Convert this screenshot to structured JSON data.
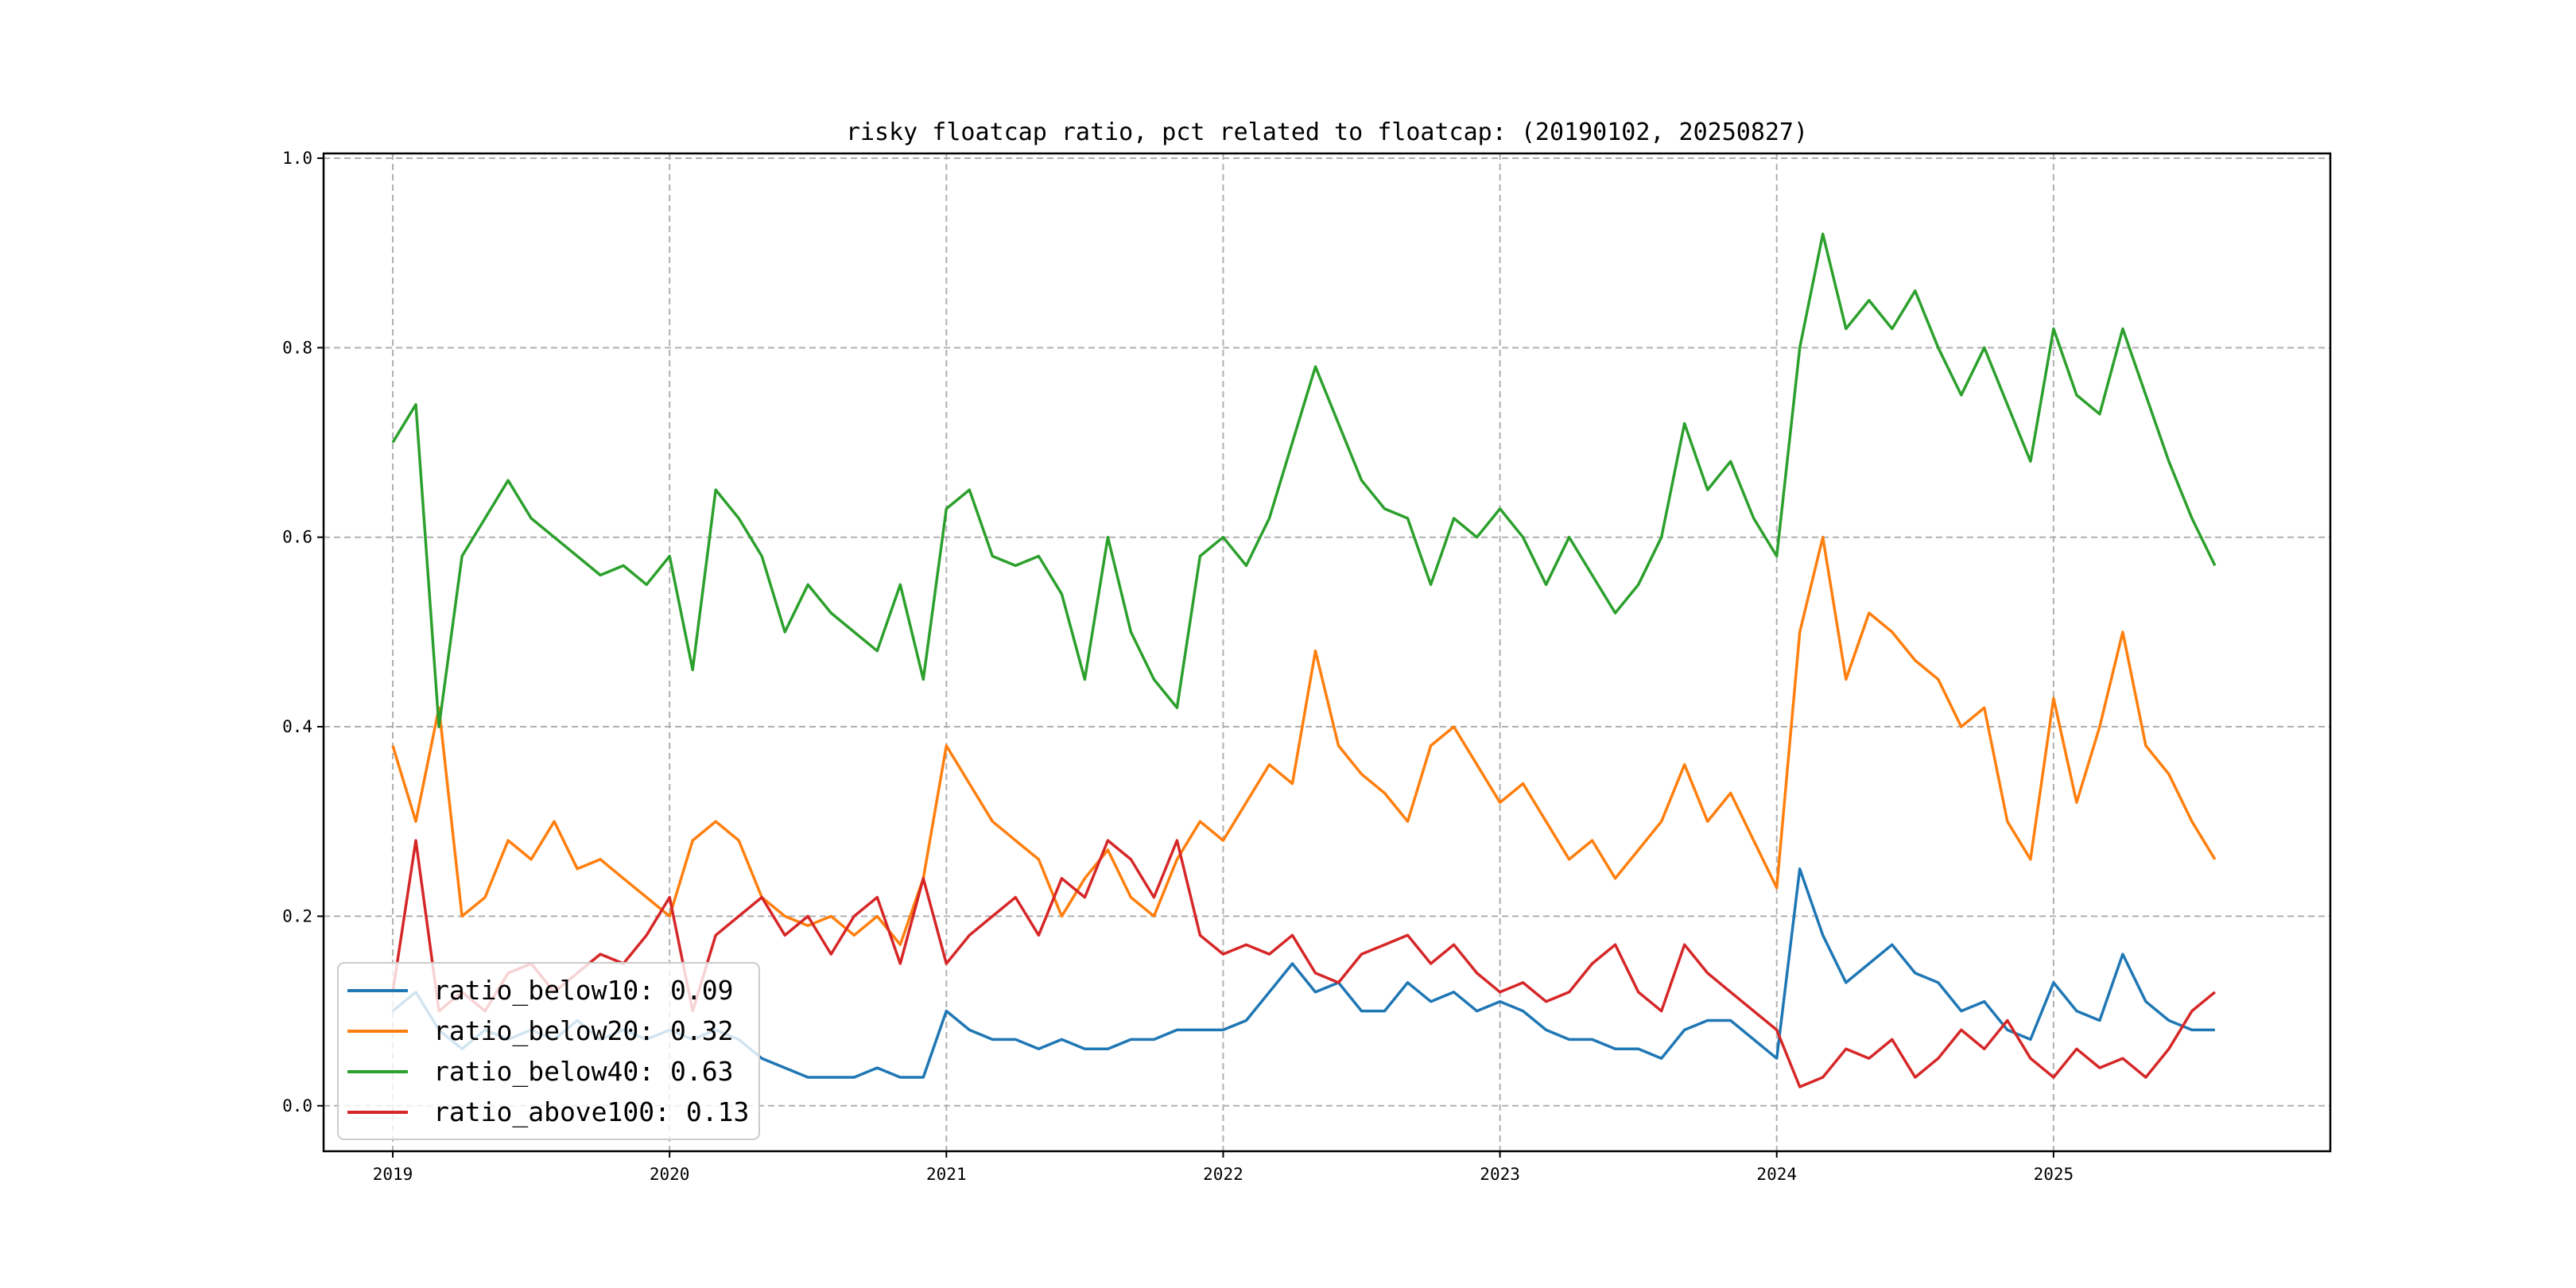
{
  "chart_data": {
    "type": "line",
    "title": "risky floatcap ratio, pct related to floatcap: (20190102, 20250827)",
    "xlabel": "",
    "ylabel": "",
    "x_start_year": 2019,
    "x_step": "monthly",
    "xlim": [
      2018.75,
      2026.0
    ],
    "ylim": [
      -0.048,
      1.005
    ],
    "x_ticks": [
      "2019",
      "2020",
      "2021",
      "2022",
      "2023",
      "2024",
      "2025"
    ],
    "y_ticks": [
      "0.0",
      "0.2",
      "0.4",
      "0.6",
      "0.8",
      "1.0"
    ],
    "grid": true,
    "legend_position": "lower-left",
    "series": [
      {
        "name": "ratio_below10",
        "legend": "ratio_below10: 0.09",
        "color": "#1f77b4",
        "values": [
          0.1,
          0.12,
          0.08,
          0.06,
          0.08,
          0.07,
          0.08,
          0.07,
          0.09,
          0.07,
          0.08,
          0.07,
          0.08,
          0.07,
          0.08,
          0.07,
          0.05,
          0.04,
          0.03,
          0.03,
          0.03,
          0.04,
          0.03,
          0.03,
          0.1,
          0.08,
          0.07,
          0.07,
          0.06,
          0.07,
          0.06,
          0.06,
          0.07,
          0.07,
          0.08,
          0.08,
          0.08,
          0.09,
          0.12,
          0.15,
          0.12,
          0.13,
          0.1,
          0.1,
          0.13,
          0.11,
          0.12,
          0.1,
          0.11,
          0.1,
          0.08,
          0.07,
          0.07,
          0.06,
          0.06,
          0.05,
          0.08,
          0.09,
          0.09,
          0.07,
          0.05,
          0.25,
          0.18,
          0.13,
          0.15,
          0.17,
          0.14,
          0.13,
          0.1,
          0.11,
          0.08,
          0.07,
          0.13,
          0.1,
          0.09,
          0.16,
          0.11,
          0.09,
          0.08,
          0.08
        ]
      },
      {
        "name": "ratio_below20",
        "legend": "ratio_below20: 0.32",
        "color": "#ff7f0e",
        "values": [
          0.38,
          0.3,
          0.42,
          0.2,
          0.22,
          0.28,
          0.26,
          0.3,
          0.25,
          0.26,
          0.24,
          0.22,
          0.2,
          0.28,
          0.3,
          0.28,
          0.22,
          0.2,
          0.19,
          0.2,
          0.18,
          0.2,
          0.17,
          0.24,
          0.38,
          0.34,
          0.3,
          0.28,
          0.26,
          0.2,
          0.24,
          0.27,
          0.22,
          0.2,
          0.26,
          0.3,
          0.28,
          0.32,
          0.36,
          0.34,
          0.48,
          0.38,
          0.35,
          0.33,
          0.3,
          0.38,
          0.4,
          0.36,
          0.32,
          0.34,
          0.3,
          0.26,
          0.28,
          0.24,
          0.27,
          0.3,
          0.36,
          0.3,
          0.33,
          0.28,
          0.23,
          0.5,
          0.6,
          0.45,
          0.52,
          0.5,
          0.47,
          0.45,
          0.4,
          0.42,
          0.3,
          0.26,
          0.43,
          0.32,
          0.4,
          0.5,
          0.38,
          0.35,
          0.3,
          0.26
        ]
      },
      {
        "name": "ratio_below40",
        "legend": "ratio_below40: 0.63",
        "color": "#2ca02c",
        "values": [
          0.7,
          0.74,
          0.4,
          0.58,
          0.62,
          0.66,
          0.62,
          0.6,
          0.58,
          0.56,
          0.57,
          0.55,
          0.58,
          0.46,
          0.65,
          0.62,
          0.58,
          0.5,
          0.55,
          0.52,
          0.5,
          0.48,
          0.55,
          0.45,
          0.63,
          0.65,
          0.58,
          0.57,
          0.58,
          0.54,
          0.45,
          0.6,
          0.5,
          0.45,
          0.42,
          0.58,
          0.6,
          0.57,
          0.62,
          0.7,
          0.78,
          0.72,
          0.66,
          0.63,
          0.62,
          0.55,
          0.62,
          0.6,
          0.63,
          0.6,
          0.55,
          0.6,
          0.56,
          0.52,
          0.55,
          0.6,
          0.72,
          0.65,
          0.68,
          0.62,
          0.58,
          0.8,
          0.92,
          0.82,
          0.85,
          0.82,
          0.86,
          0.8,
          0.75,
          0.8,
          0.74,
          0.68,
          0.82,
          0.75,
          0.73,
          0.82,
          0.75,
          0.68,
          0.62,
          0.57
        ]
      },
      {
        "name": "ratio_above100",
        "legend": "ratio_above100: 0.13",
        "color": "#d62728",
        "values": [
          0.12,
          0.28,
          0.1,
          0.12,
          0.1,
          0.14,
          0.15,
          0.12,
          0.14,
          0.16,
          0.15,
          0.18,
          0.22,
          0.1,
          0.18,
          0.2,
          0.22,
          0.18,
          0.2,
          0.16,
          0.2,
          0.22,
          0.15,
          0.24,
          0.15,
          0.18,
          0.2,
          0.22,
          0.18,
          0.24,
          0.22,
          0.28,
          0.26,
          0.22,
          0.28,
          0.18,
          0.16,
          0.17,
          0.16,
          0.18,
          0.14,
          0.13,
          0.16,
          0.17,
          0.18,
          0.15,
          0.17,
          0.14,
          0.12,
          0.13,
          0.11,
          0.12,
          0.15,
          0.17,
          0.12,
          0.1,
          0.17,
          0.14,
          0.12,
          0.1,
          0.08,
          0.02,
          0.03,
          0.06,
          0.05,
          0.07,
          0.03,
          0.05,
          0.08,
          0.06,
          0.09,
          0.05,
          0.03,
          0.06,
          0.04,
          0.05,
          0.03,
          0.06,
          0.1,
          0.12
        ]
      }
    ]
  }
}
